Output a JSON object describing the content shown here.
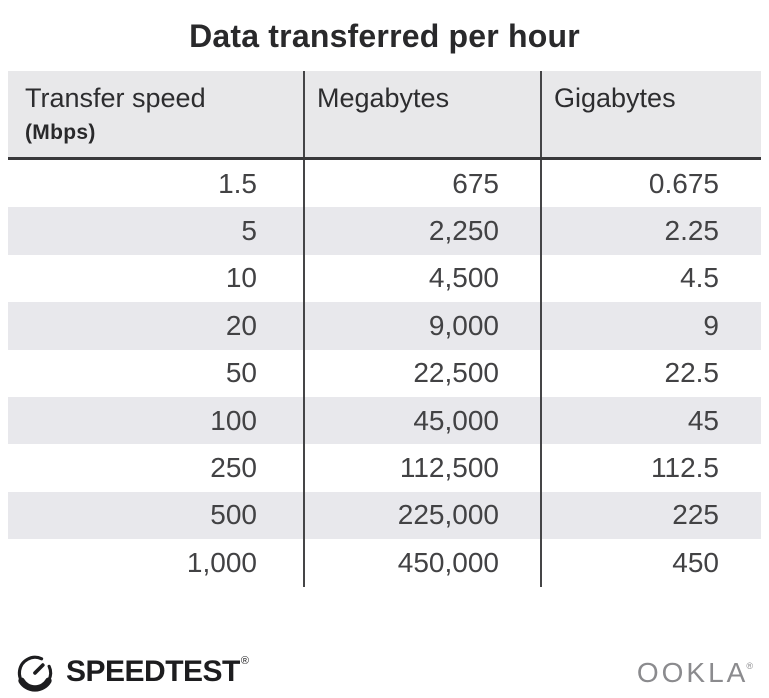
{
  "title": "Data transferred per hour",
  "chart_data": {
    "type": "table",
    "title": "Data transferred per hour",
    "columns": [
      {
        "label": "Transfer speed",
        "sublabel": "(Mbps)"
      },
      {
        "label": "Megabytes"
      },
      {
        "label": "Gigabytes"
      }
    ],
    "rows": [
      [
        "1.5",
        "675",
        "0.675"
      ],
      [
        "5",
        "2,250",
        "2.25"
      ],
      [
        "10",
        "4,500",
        "4.5"
      ],
      [
        "20",
        "9,000",
        "9"
      ],
      [
        "50",
        "22,500",
        "22.5"
      ],
      [
        "100",
        "45,000",
        "45"
      ],
      [
        "250",
        "112,500",
        "112.5"
      ],
      [
        "500",
        "225,000",
        "225"
      ],
      [
        "1,000",
        "450,000",
        "450"
      ]
    ],
    "layout": {
      "row_striping": "alternate gray/white",
      "value_alignment": "right",
      "grid": "vertical dividers only"
    }
  },
  "footer": {
    "brand": "SPEEDTEST",
    "brand_mark": "®",
    "company": "OOKLA",
    "company_mark": "®"
  },
  "icons": {
    "gauge": "speedtest-gauge-icon"
  },
  "colors": {
    "page_bg": "#ffffff",
    "header_bg": "#e8e8ea",
    "row_alt": "#e8e8ec",
    "divider": "#454547",
    "rule": "#39393b",
    "title_text": "#29292b",
    "header_text": "#2d2d2f",
    "cell_text": "#424244",
    "brand_dark": "#1d1d1f",
    "brand_gray": "#8b8b8e"
  }
}
